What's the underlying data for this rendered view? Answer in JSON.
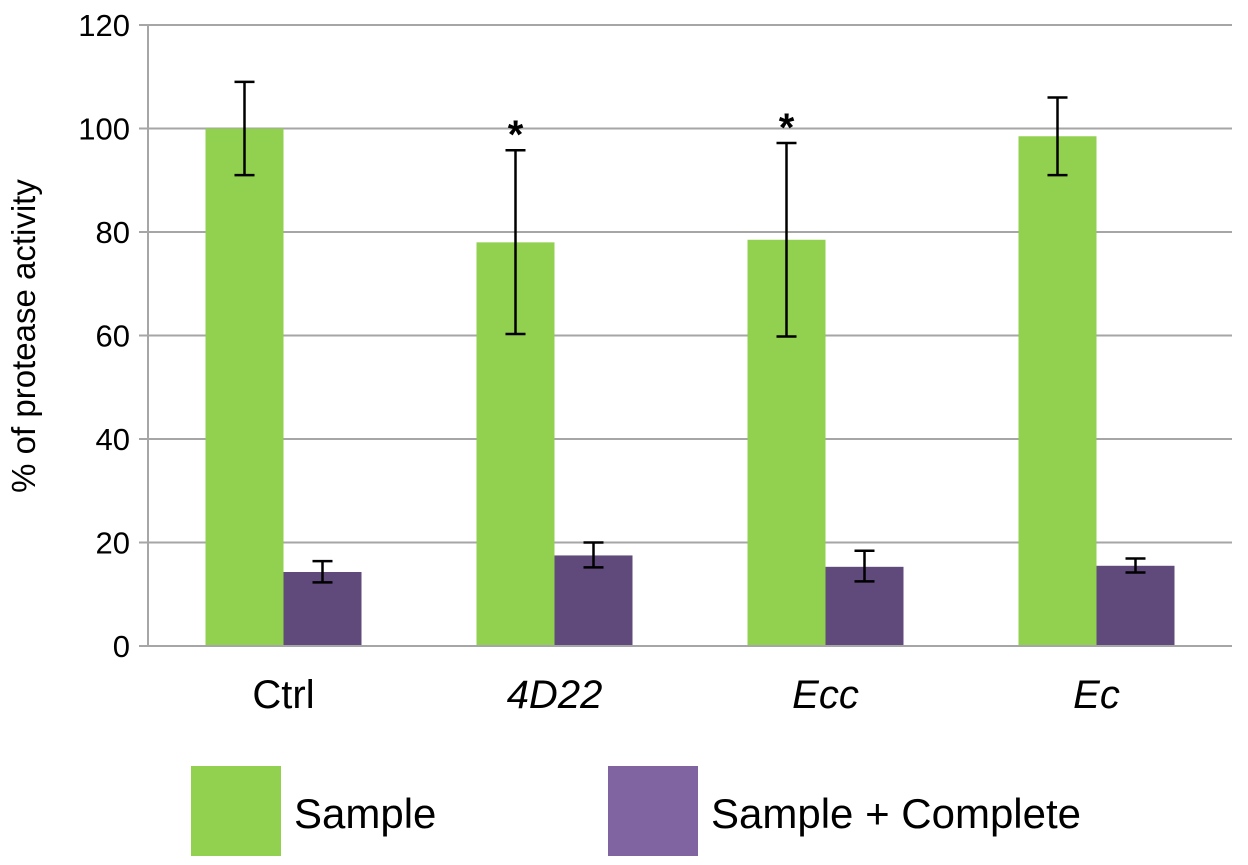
{
  "chart_data": {
    "type": "bar",
    "categories": [
      "Ctrl",
      "4D22",
      "Ecc",
      "Ec"
    ],
    "category_italic": [
      false,
      true,
      true,
      true
    ],
    "ylabel": "% of protease activity",
    "ylim": [
      0,
      120
    ],
    "yticks": [
      0,
      20,
      40,
      60,
      80,
      100,
      120
    ],
    "grid": true,
    "legend_position": "bottom",
    "series": [
      {
        "name": "Sample",
        "color": "#92d050",
        "values": [
          100,
          78,
          78.5,
          98.5
        ],
        "error_low": [
          91,
          60.3,
          59.8,
          91
        ],
        "error_high": [
          109,
          95.8,
          97.2,
          106
        ]
      },
      {
        "name": "Sample + Complete",
        "color": "#604a7b",
        "legend_color": "#8064a2",
        "values": [
          14.3,
          17.5,
          15.3,
          15.5
        ],
        "error_low": [
          12.3,
          15.2,
          12.5,
          14.2
        ],
        "error_high": [
          16.4,
          20,
          18.4,
          16.9
        ]
      }
    ],
    "annotations": [
      {
        "category_index": 1,
        "text": "*"
      },
      {
        "category_index": 2,
        "text": "*"
      }
    ]
  }
}
